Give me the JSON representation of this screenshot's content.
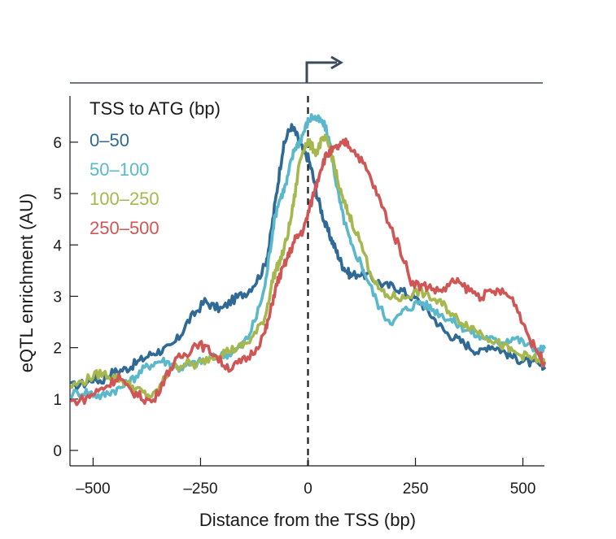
{
  "chart_data": {
    "type": "line",
    "xlabel": "Distance from the TSS (bp)",
    "ylabel": "eQTL enrichment (AU)",
    "xlim": [
      -550,
      550
    ],
    "ylim": [
      -0.3,
      6.9
    ],
    "xticks": [
      -500,
      -250,
      0,
      250,
      500
    ],
    "xtick_labels": [
      "–500",
      "–250",
      "0",
      "250",
      "500"
    ],
    "yticks": [
      0,
      1,
      2,
      3,
      4,
      5,
      6
    ],
    "ytick_labels": [
      "0",
      "1",
      "2",
      "3",
      "4",
      "5",
      "6"
    ],
    "tss_marker_x": 0,
    "legend": {
      "title": "TSS to ATG (bp)",
      "position": "top-left"
    },
    "series": [
      {
        "name": "0–50",
        "color": "#2f6a96",
        "x": [
          -550,
          -520,
          -500,
          -480,
          -460,
          -440,
          -420,
          -400,
          -380,
          -360,
          -340,
          -320,
          -300,
          -280,
          -260,
          -240,
          -220,
          -200,
          -180,
          -160,
          -140,
          -120,
          -100,
          -90,
          -80,
          -70,
          -60,
          -50,
          -40,
          -30,
          -20,
          -10,
          0,
          10,
          20,
          30,
          40,
          50,
          60,
          70,
          80,
          90,
          100,
          120,
          140,
          160,
          180,
          200,
          220,
          240,
          260,
          280,
          300,
          320,
          340,
          360,
          380,
          400,
          420,
          440,
          460,
          480,
          500,
          520,
          540,
          550
        ],
        "y": [
          1.25,
          1.3,
          1.4,
          1.35,
          1.5,
          1.55,
          1.6,
          1.7,
          1.8,
          1.9,
          1.95,
          2.0,
          2.2,
          2.5,
          2.7,
          2.9,
          2.8,
          2.75,
          2.9,
          3.0,
          3.1,
          3.3,
          3.6,
          4.0,
          4.6,
          5.2,
          5.8,
          6.1,
          6.3,
          6.2,
          6.0,
          5.8,
          5.7,
          5.4,
          5.0,
          4.7,
          4.4,
          4.2,
          4.0,
          3.8,
          3.6,
          3.5,
          3.4,
          3.45,
          3.4,
          3.3,
          3.2,
          3.2,
          3.1,
          3.0,
          2.9,
          2.7,
          2.5,
          2.3,
          2.2,
          2.1,
          2.0,
          1.9,
          2.05,
          2.0,
          1.9,
          1.8,
          1.75,
          1.7,
          1.65,
          1.6
        ]
      },
      {
        "name": "50–100",
        "color": "#5bb8cc",
        "x": [
          -550,
          -520,
          -500,
          -480,
          -460,
          -440,
          -420,
          -400,
          -380,
          -360,
          -340,
          -320,
          -300,
          -280,
          -260,
          -240,
          -220,
          -200,
          -180,
          -160,
          -140,
          -120,
          -100,
          -90,
          -80,
          -70,
          -60,
          -50,
          -40,
          -30,
          -20,
          -10,
          0,
          10,
          20,
          30,
          40,
          50,
          60,
          70,
          80,
          90,
          100,
          120,
          140,
          160,
          180,
          200,
          220,
          240,
          260,
          280,
          300,
          320,
          340,
          360,
          380,
          400,
          420,
          440,
          460,
          480,
          500,
          520,
          540,
          550
        ],
        "y": [
          1.1,
          1.15,
          1.1,
          1.05,
          1.15,
          1.2,
          1.3,
          1.45,
          1.6,
          1.7,
          1.75,
          1.7,
          1.6,
          1.65,
          1.7,
          1.75,
          1.8,
          1.85,
          1.9,
          2.0,
          2.2,
          2.6,
          3.2,
          3.8,
          4.4,
          4.8,
          5.0,
          5.2,
          5.6,
          5.9,
          6.0,
          6.2,
          6.4,
          6.5,
          6.45,
          6.4,
          6.3,
          6.0,
          5.5,
          5.0,
          4.6,
          4.3,
          4.0,
          3.7,
          3.3,
          2.9,
          2.6,
          2.5,
          2.7,
          2.8,
          2.9,
          2.8,
          2.7,
          2.6,
          2.5,
          2.4,
          2.3,
          2.2,
          2.2,
          2.1,
          2.15,
          2.2,
          2.1,
          2.0,
          1.95,
          2.0
        ]
      },
      {
        "name": "100–250",
        "color": "#a6b74d",
        "x": [
          -550,
          -520,
          -500,
          -480,
          -460,
          -440,
          -420,
          -400,
          -380,
          -360,
          -340,
          -320,
          -300,
          -280,
          -260,
          -240,
          -220,
          -200,
          -180,
          -160,
          -140,
          -120,
          -100,
          -90,
          -80,
          -70,
          -60,
          -50,
          -40,
          -30,
          -20,
          -10,
          0,
          10,
          20,
          30,
          40,
          50,
          60,
          70,
          80,
          90,
          100,
          120,
          140,
          160,
          180,
          200,
          220,
          240,
          260,
          280,
          300,
          320,
          340,
          360,
          380,
          400,
          420,
          440,
          460,
          480,
          500,
          520,
          540,
          550
        ],
        "y": [
          1.25,
          1.35,
          1.45,
          1.5,
          1.45,
          1.4,
          1.3,
          1.2,
          1.1,
          1.05,
          1.3,
          1.6,
          1.65,
          1.7,
          1.65,
          1.75,
          1.85,
          1.9,
          1.95,
          2.0,
          2.1,
          2.3,
          2.6,
          3.0,
          3.4,
          3.6,
          3.8,
          4.1,
          4.5,
          5.0,
          5.6,
          5.9,
          6.0,
          5.9,
          5.8,
          6.0,
          6.05,
          5.9,
          5.6,
          5.2,
          4.9,
          4.7,
          4.5,
          4.1,
          3.6,
          3.2,
          3.0,
          3.0,
          2.95,
          3.05,
          3.1,
          3.0,
          2.9,
          2.8,
          2.6,
          2.5,
          2.4,
          2.3,
          2.2,
          2.1,
          2.0,
          1.9,
          1.85,
          1.8,
          1.75,
          1.7
        ]
      },
      {
        "name": "250–500",
        "color": "#d05656",
        "x": [
          -550,
          -520,
          -500,
          -480,
          -460,
          -440,
          -420,
          -400,
          -380,
          -360,
          -340,
          -320,
          -300,
          -280,
          -260,
          -240,
          -220,
          -200,
          -180,
          -160,
          -140,
          -120,
          -100,
          -90,
          -80,
          -70,
          -60,
          -50,
          -40,
          -30,
          -20,
          -10,
          0,
          10,
          20,
          30,
          40,
          50,
          60,
          70,
          80,
          90,
          100,
          120,
          140,
          160,
          180,
          200,
          220,
          240,
          260,
          280,
          300,
          320,
          340,
          360,
          380,
          400,
          420,
          440,
          460,
          480,
          500,
          520,
          540,
          550
        ],
        "y": [
          0.95,
          1.0,
          1.1,
          1.2,
          1.3,
          1.45,
          1.2,
          1.1,
          1.0,
          0.95,
          1.3,
          1.6,
          1.8,
          1.9,
          2.1,
          2.0,
          1.9,
          1.7,
          1.6,
          1.7,
          1.8,
          2.0,
          2.3,
          2.6,
          3.0,
          3.3,
          3.5,
          3.7,
          3.9,
          4.1,
          4.2,
          4.3,
          4.6,
          4.9,
          5.2,
          5.5,
          5.7,
          5.8,
          5.85,
          5.9,
          5.95,
          6.0,
          5.9,
          5.7,
          5.4,
          5.0,
          4.6,
          4.2,
          3.8,
          3.3,
          3.2,
          3.2,
          3.1,
          3.15,
          3.3,
          3.2,
          3.1,
          3.0,
          3.05,
          3.1,
          3.05,
          2.9,
          2.5,
          2.1,
          1.85,
          1.7
        ]
      }
    ]
  }
}
